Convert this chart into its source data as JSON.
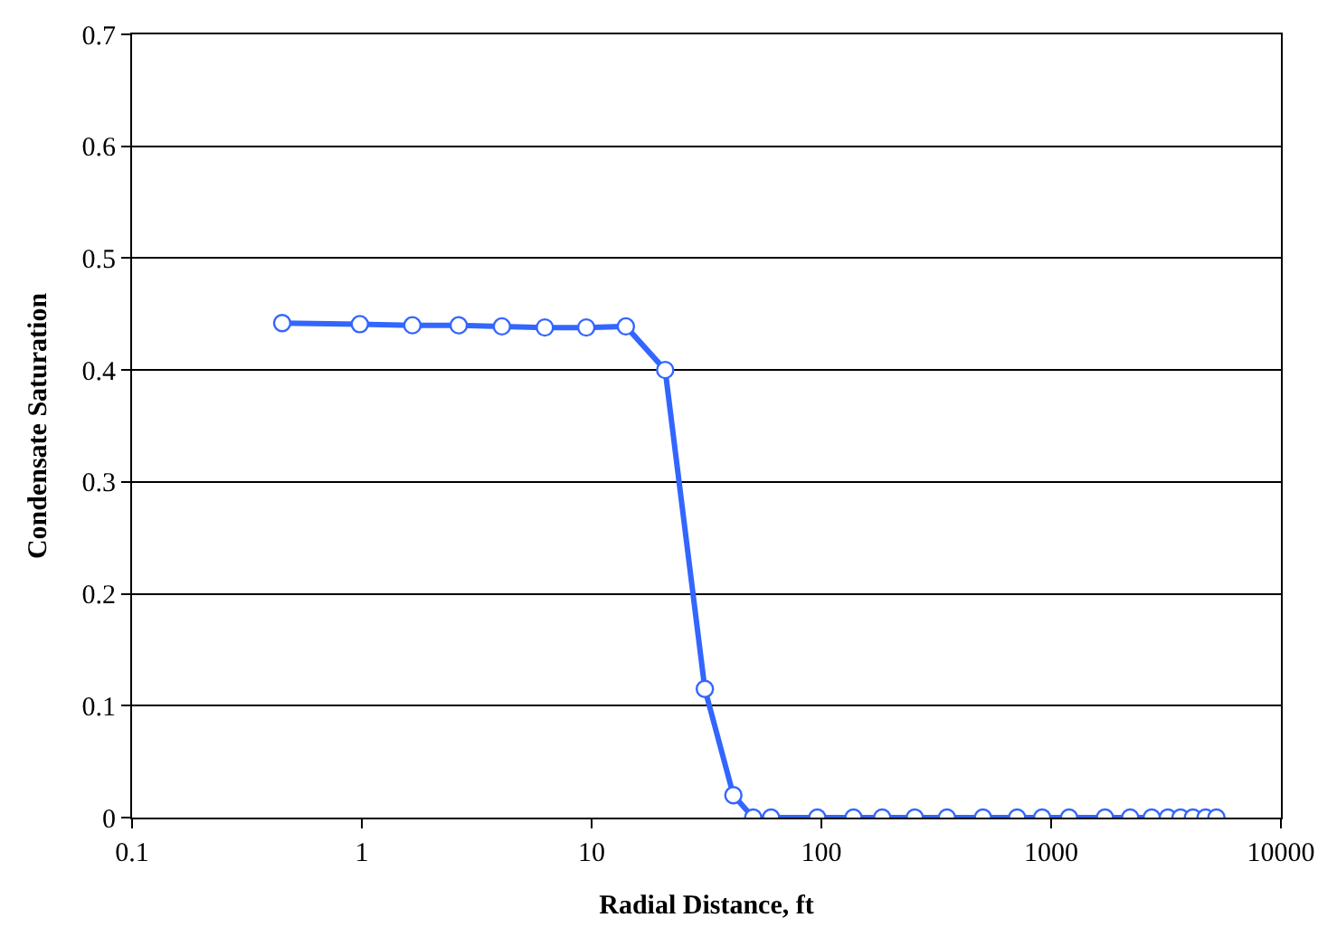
{
  "chart_data": {
    "type": "line",
    "xlabel": "Radial Distance, ft",
    "ylabel": "Condensate Saturation",
    "log": "x",
    "x": [
      0.45,
      0.98,
      1.66,
      2.64,
      4.07,
      6.26,
      9.48,
      14.1,
      20.9,
      31.1,
      41.4,
      50.5,
      60.4,
      96,
      138,
      184,
      255,
      352,
      505,
      711,
      914,
      1197,
      1715,
      2208,
      2740,
      3220,
      3656,
      4140,
      4700,
      5240
    ],
    "series": [
      {
        "color": "#3366ff",
        "values": [
          0.442,
          0.441,
          0.44,
          0.44,
          0.439,
          0.438,
          0.438,
          0.439,
          0.4,
          0.115,
          0.02,
          0,
          0,
          0,
          0,
          0,
          0,
          0,
          0,
          0,
          0,
          0,
          0,
          0,
          0,
          0,
          0,
          0,
          0,
          0
        ]
      }
    ],
    "xlim": [
      0.1,
      10000
    ],
    "xticks": [
      0.1,
      1,
      10,
      100,
      1000,
      10000
    ],
    "ylim": [
      0,
      0.7
    ],
    "yticks": [
      0,
      0.1,
      0.2,
      0.3,
      0.4,
      0.5,
      0.6,
      0.7
    ],
    "grid": "y",
    "marker": "circle",
    "line_style": "solid"
  }
}
